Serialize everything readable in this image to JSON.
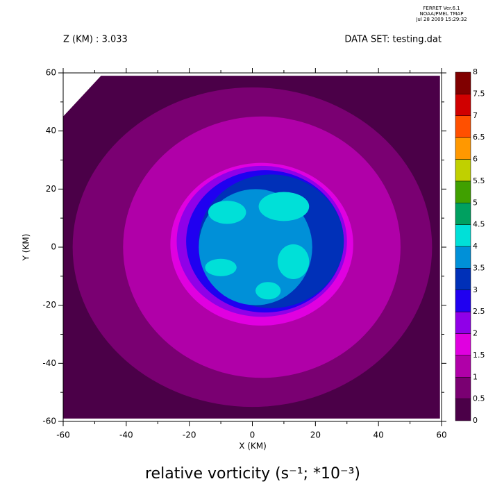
{
  "chart_data": {
    "type": "contour",
    "stamp": [
      "FERRET  Ver.6.1",
      "NOAA/PMEL TMAP",
      "Jul 28 2009 15:29:32"
    ],
    "left_header": "Z (KM) : 3.033",
    "right_header": "DATA SET: testing.dat",
    "title": "relative vorticity (s⁻¹; *10⁻³)",
    "xlabel": "X (KM)",
    "ylabel": "Y (KM)",
    "xlim": [
      -60,
      60
    ],
    "ylim": [
      -60,
      60
    ],
    "xticks": [
      -60,
      -40,
      -20,
      0,
      20,
      40,
      60
    ],
    "yticks": [
      -60,
      -40,
      -20,
      0,
      20,
      40,
      60
    ],
    "xminor_ticks": [
      -50,
      -30,
      -10,
      10,
      30,
      50
    ],
    "yminor_ticks": [
      -50,
      -30,
      -10,
      10,
      30,
      50
    ],
    "levels": [
      0,
      0.5,
      1,
      1.5,
      2,
      2.5,
      3,
      3.5,
      4,
      4.5,
      5,
      5.5,
      6,
      6.5,
      7,
      7.5,
      8
    ],
    "level_colors": [
      "#4b0048",
      "#7a0072",
      "#b000a8",
      "#e000e0",
      "#9000e8",
      "#2000f0",
      "#0030b8",
      "#0090d8",
      "#00e0d8",
      "#00a060",
      "#40a000",
      "#c0d000",
      "#ff9800",
      "#ff5000",
      "#d00000",
      "#800000"
    ],
    "background_value": 0.25,
    "domain_x": [
      -60,
      -48,
      59.5,
      59.5,
      -60
    ],
    "domain_y": [
      45,
      59,
      59,
      -59,
      -59
    ],
    "regions": [
      {
        "value": 0.75,
        "cx": 0,
        "cy": 0,
        "rx": 57,
        "ry": 55
      },
      {
        "value": 1.25,
        "cx": 3,
        "cy": 0,
        "rx": 44,
        "ry": 45
      },
      {
        "value": 1.75,
        "cx": 3,
        "cy": 1,
        "rx": 29,
        "ry": 28
      },
      {
        "value": 2.25,
        "cx": 3,
        "cy": 2,
        "rx": 27,
        "ry": 26
      },
      {
        "value": 2.75,
        "cx": 4,
        "cy": 2,
        "rx": 25,
        "ry": 24.5
      },
      {
        "value": 3.25,
        "cx": 6,
        "cy": 2,
        "rx": 23,
        "ry": 23
      },
      {
        "value": 3.75,
        "cx": 1,
        "cy": 0,
        "rx": 18,
        "ry": 20
      },
      {
        "value": 4.25,
        "cx": 10,
        "cy": 14,
        "rx": 8,
        "ry": 5
      },
      {
        "value": 4.25,
        "cx": -8,
        "cy": 12,
        "rx": 6,
        "ry": 4
      },
      {
        "value": 4.25,
        "cx": -10,
        "cy": -7,
        "rx": 5,
        "ry": 3
      },
      {
        "value": 4.25,
        "cx": 13,
        "cy": -5,
        "rx": 5,
        "ry": 6
      },
      {
        "value": 4.25,
        "cx": 5,
        "cy": -15,
        "rx": 4,
        "ry": 3
      }
    ]
  }
}
